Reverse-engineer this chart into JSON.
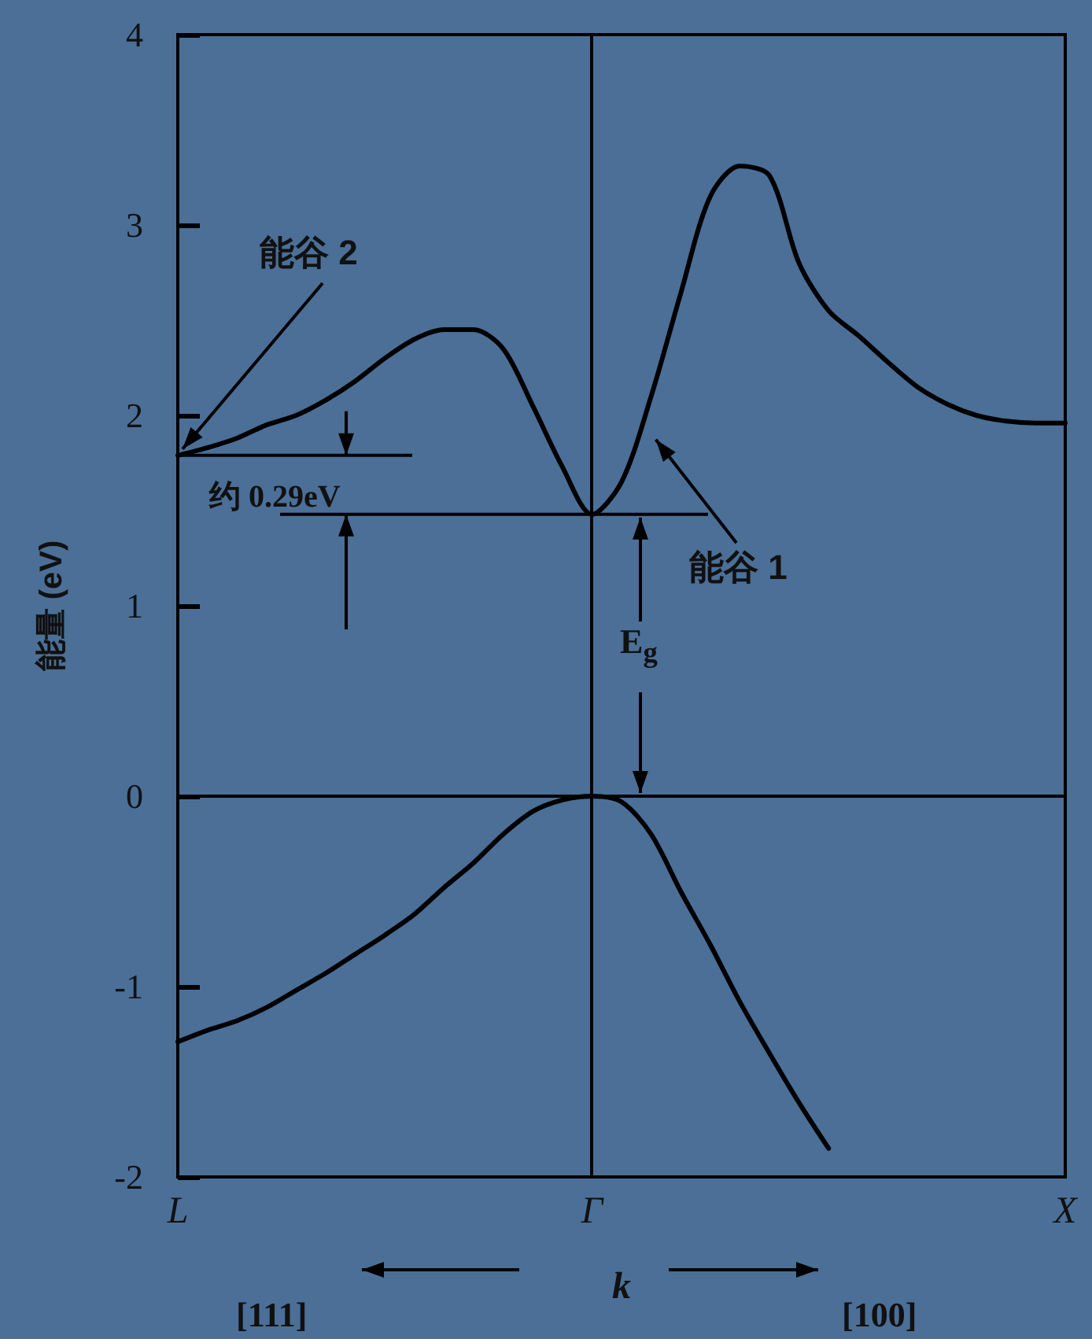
{
  "chart_data": {
    "type": "line",
    "xlabel": "k",
    "ylabel": "能量 (eV)",
    "categories": [
      "L",
      null,
      null,
      null,
      null,
      null,
      null,
      null,
      null,
      null,
      null,
      null,
      null,
      null,
      "Γ",
      null,
      null,
      null,
      null,
      null,
      null,
      null,
      null,
      null,
      null,
      null,
      null,
      null,
      null,
      null,
      "X"
    ],
    "ylim": [
      -2,
      4
    ],
    "yticks": [
      -2,
      -1,
      0,
      1,
      2,
      3,
      4
    ],
    "grid": false,
    "marker": "none",
    "line_style": "solid",
    "series": [
      {
        "color": "#000000",
        "values": [
          1.79,
          1.83,
          1.88,
          1.95,
          2.0,
          2.08,
          2.18,
          2.3,
          2.4,
          2.45,
          2.45,
          2.35,
          2.05,
          1.73,
          1.48,
          1.65,
          2.1,
          2.64,
          3.15,
          3.31,
          3.26,
          2.8,
          2.55,
          2.42,
          2.28,
          2.15,
          2.06,
          2.0,
          1.97,
          1.96,
          1.96
        ]
      },
      {
        "color": "#000000",
        "values": [
          -1.29,
          -1.23,
          -1.18,
          -1.11,
          -1.02,
          -0.93,
          -0.83,
          -0.73,
          -0.62,
          -0.48,
          -0.35,
          -0.2,
          -0.08,
          -0.02,
          0,
          -0.03,
          -0.2,
          -0.5,
          -0.78,
          -1.08,
          -1.35,
          -1.61,
          -1.85,
          null,
          null,
          null,
          null,
          null,
          null,
          null,
          null
        ]
      }
    ],
    "ref_lines": [
      {
        "axis": "y",
        "value": 0,
        "color": "#000000"
      },
      {
        "axis": "x",
        "value": "Γ",
        "color": "#000000"
      }
    ],
    "annotations": [
      {
        "text": "能谷 2",
        "x": "L",
        "y": 1.79
      },
      "约 0.29eV",
      "能谷 1",
      {
        "text": "E$_{g}$",
        "y": 0
      },
      "[111]",
      "[100]"
    ]
  }
}
